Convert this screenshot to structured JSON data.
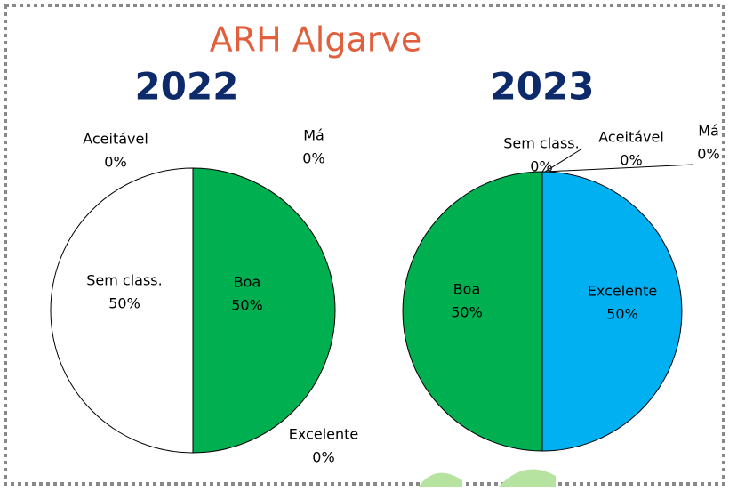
{
  "title": "ARH Algarve",
  "chart_data": [
    {
      "type": "pie",
      "title": "2022",
      "categories": [
        "Má",
        "Boa",
        "Excelente",
        "Sem class.",
        "Aceitável"
      ],
      "values": [
        0,
        50,
        0,
        50,
        0
      ],
      "value_labels": [
        "0%",
        "50%",
        "0%",
        "50%",
        "0%"
      ],
      "colors": [
        "#c0392b",
        "#00b050",
        "#00b0f0",
        "#ffffff",
        "#ffff00"
      ]
    },
    {
      "type": "pie",
      "title": "2023",
      "categories": [
        "Excelente",
        "Boa",
        "Sem class.",
        "Aceitável",
        "Má"
      ],
      "values": [
        50,
        50,
        0,
        0,
        0
      ],
      "value_labels": [
        "50%",
        "50%",
        "0%",
        "0%",
        "0%"
      ],
      "colors": [
        "#00b0f0",
        "#00b050",
        "#ffffff",
        "#ffff00",
        "#c0392b"
      ]
    }
  ]
}
